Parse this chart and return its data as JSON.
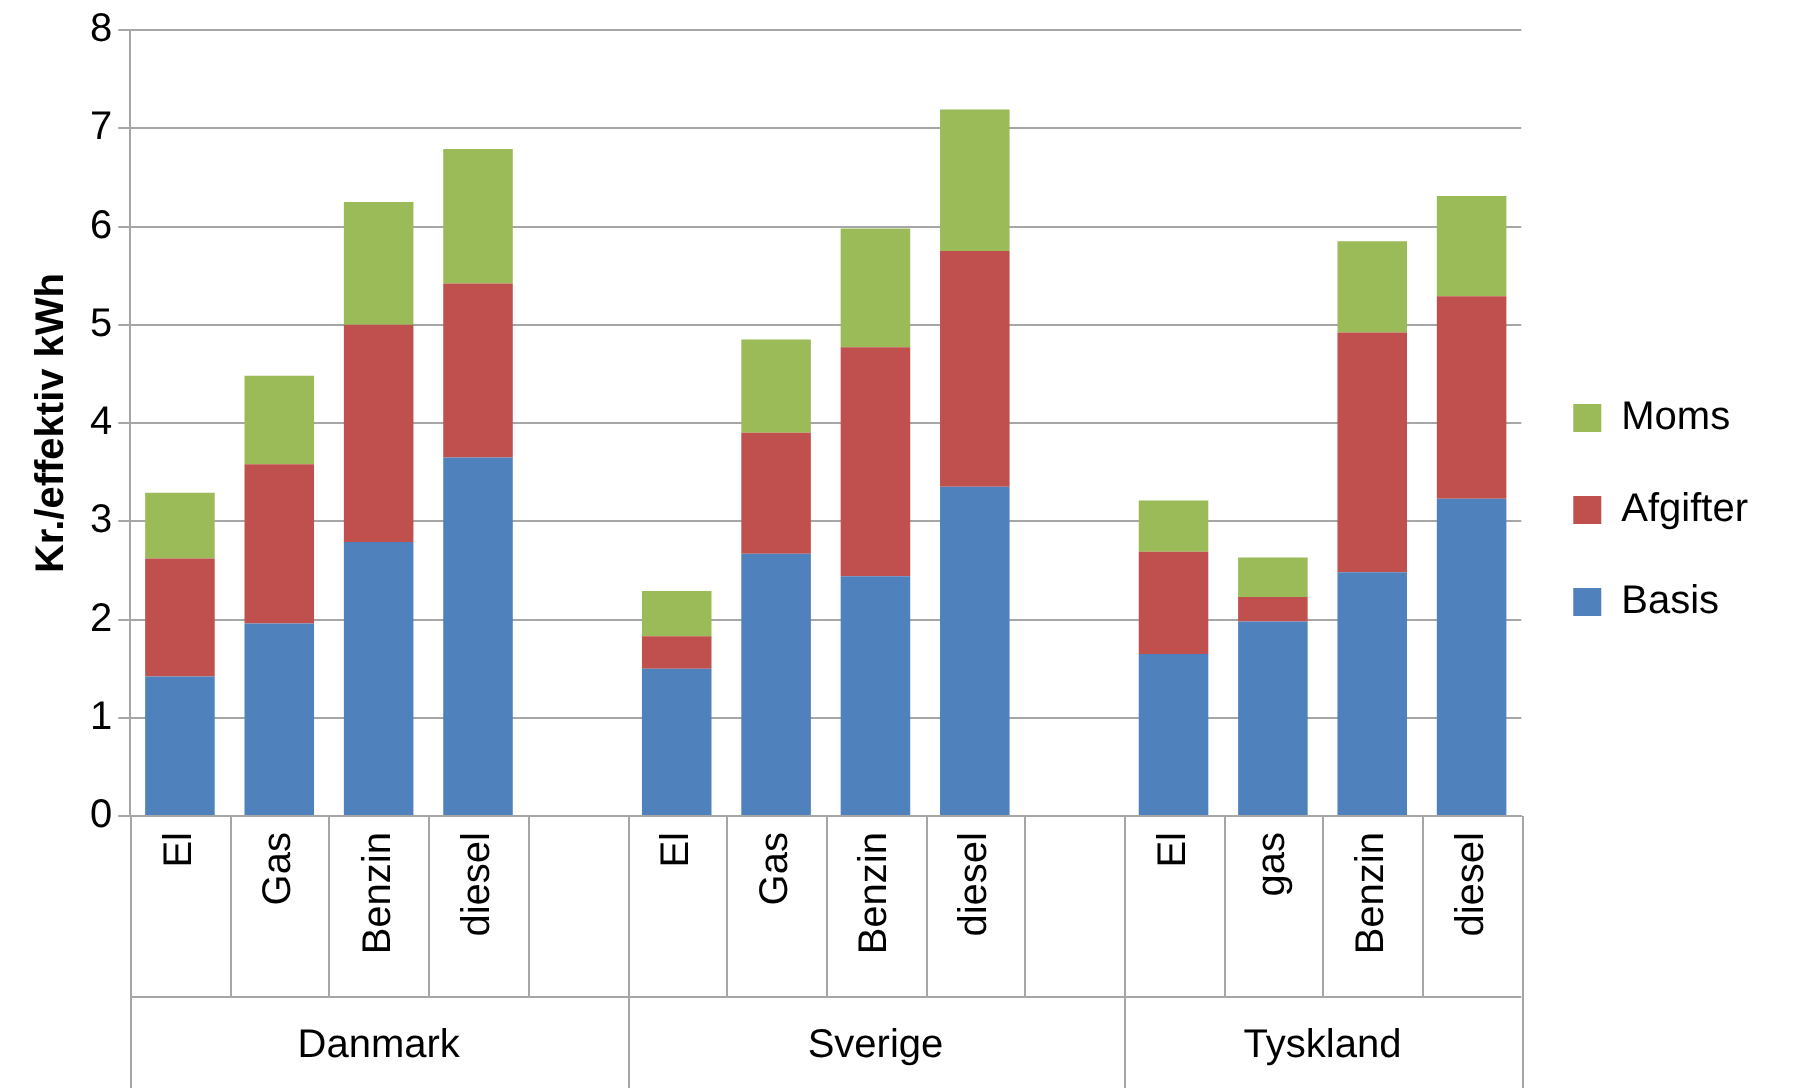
{
  "chart_data": {
    "type": "bar",
    "stacked": true,
    "ylabel": "Kr./effektiv kWh",
    "categories": [
      "El",
      "Gas",
      "Benzin",
      "diesel",
      null,
      "El",
      "Gas",
      "Benzin",
      "diesel",
      null,
      "El",
      "gas",
      "Benzin",
      "diesel"
    ],
    "series": [
      {
        "name": "Basis",
        "color": "#4f81bd",
        "values": [
          1.42,
          1.96,
          2.79,
          3.65,
          null,
          1.5,
          2.67,
          2.44,
          3.35,
          null,
          1.65,
          1.98,
          2.48,
          3.23
        ]
      },
      {
        "name": "Afgifter",
        "color": "#c0504d",
        "values": [
          1.2,
          1.62,
          2.21,
          1.77,
          null,
          0.33,
          1.23,
          2.33,
          2.4,
          null,
          1.04,
          0.25,
          2.44,
          2.06
        ]
      },
      {
        "name": "Moms",
        "color": "#9bbb59",
        "values": [
          0.67,
          0.9,
          1.25,
          1.37,
          null,
          0.46,
          0.95,
          1.21,
          1.44,
          null,
          0.52,
          0.4,
          0.93,
          1.02
        ]
      }
    ],
    "annotations": [
      "Danmark",
      "Sverige",
      "Tyskland"
    ],
    "ylim": [
      0,
      8
    ],
    "yticks": [
      0,
      1,
      2,
      3,
      4,
      5,
      6,
      7,
      8
    ],
    "grid": "y",
    "legend": "right"
  }
}
